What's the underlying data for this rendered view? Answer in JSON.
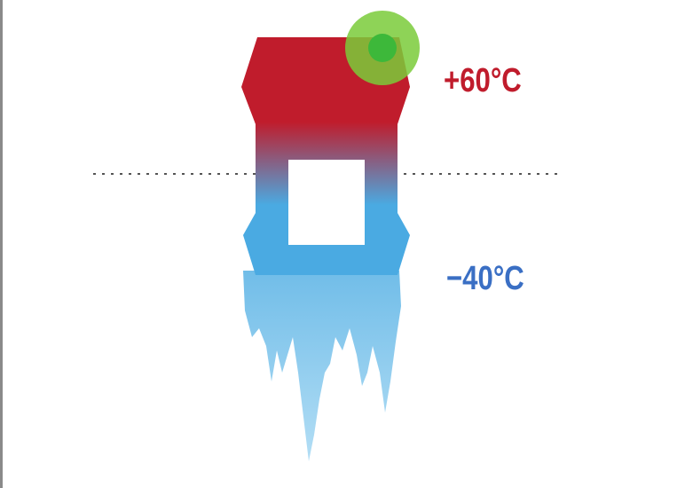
{
  "labels": {
    "hot": "+60°C",
    "cold": "−40°C"
  }
}
